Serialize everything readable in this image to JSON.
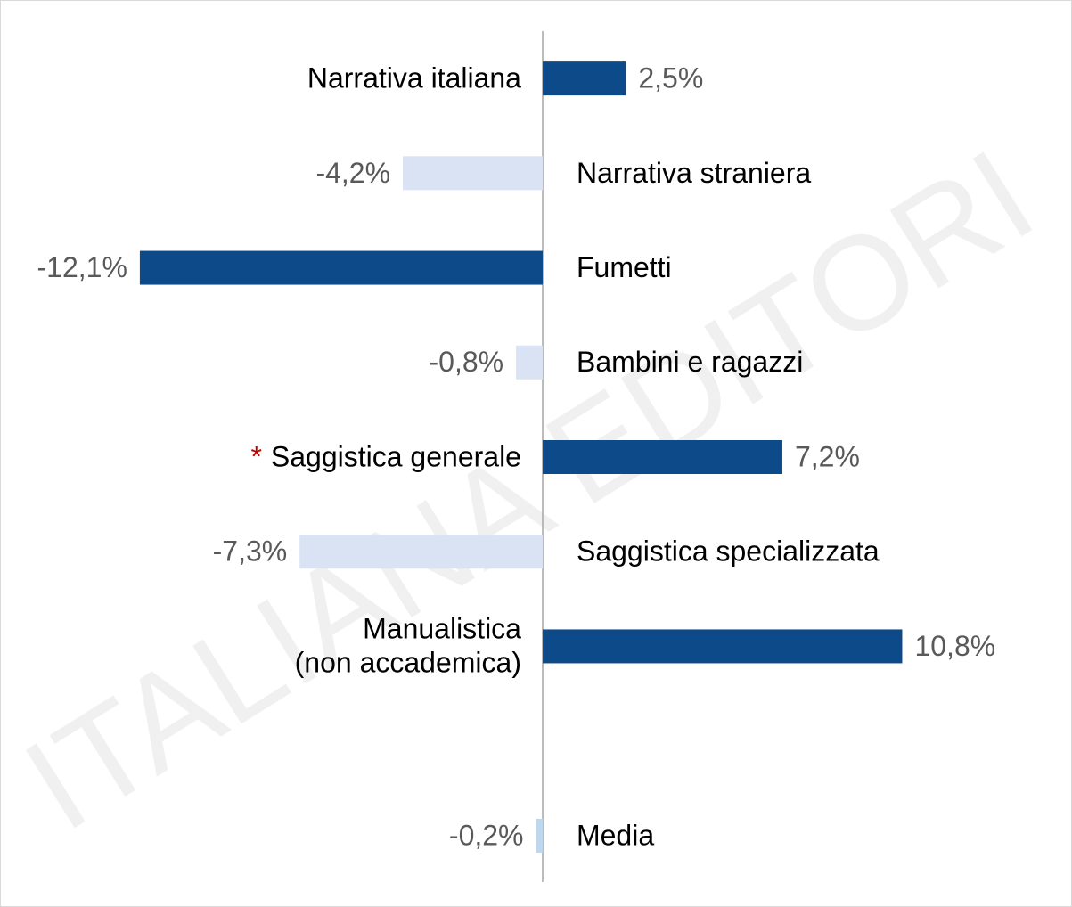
{
  "chart_data": {
    "type": "diverging-bar",
    "categories": [
      "Narrativa italiana",
      "Narrativa straniera",
      "Fumetti",
      "Bambini e ragazzi",
      "Saggistica generale",
      "Saggistica specializzata",
      "Manualistica\n(non accademica)",
      null,
      "Media"
    ],
    "values": [
      2.5,
      -4.2,
      -12.1,
      -0.8,
      7.2,
      -7.3,
      10.8,
      null,
      -0.2
    ],
    "value_labels": [
      "2,5%",
      "-4,2%",
      "-12,1%",
      "-0,8%",
      "7,2%",
      "-7,3%",
      "10,8%",
      null,
      "-0,2%"
    ],
    "colors": [
      "#0d4a8a",
      "#dae3f3",
      "#0d4a8a",
      "#dae3f3",
      "#0d4a8a",
      "#dae3f3",
      "#0d4a8a",
      null,
      "#bdd7ee"
    ],
    "note_marker": "*",
    "note_marker_color": "#c00000",
    "watermark": "ITALIANA EDITORI",
    "xlim": [
      -16.3,
      15.9
    ]
  }
}
